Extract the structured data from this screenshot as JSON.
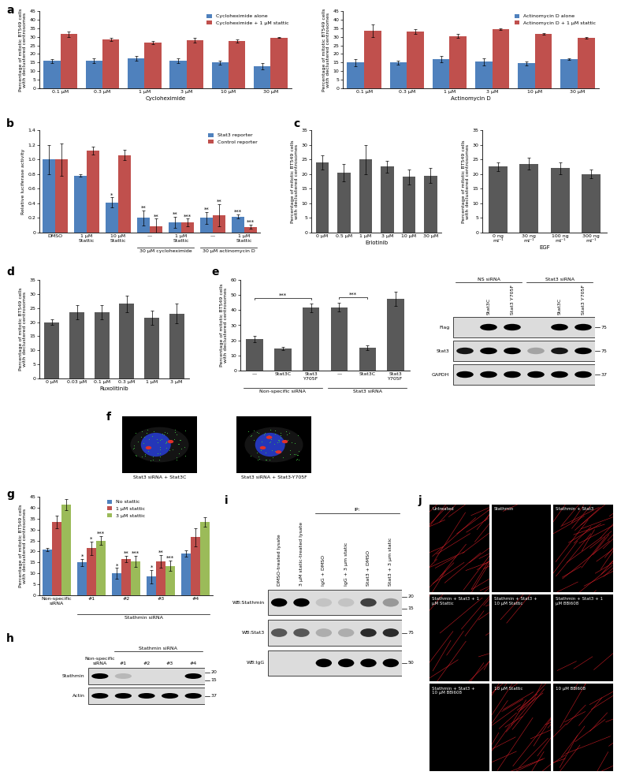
{
  "chart_data": [
    {
      "panel": "a",
      "type": "bar",
      "categories": [
        "0.1 µM",
        "0.3 µM",
        "1 µM",
        "3 µM",
        "10 µM",
        "30 µM"
      ],
      "x_label": "Cycloheximide",
      "y_label": "Percentage of mitotic BT549 cells with declustered centrosomes",
      "ylim": [
        0,
        45
      ],
      "yticks": [
        0,
        5,
        10,
        15,
        20,
        25,
        30,
        35,
        40,
        45
      ],
      "grid": false,
      "legend": "upper right",
      "series": [
        {
          "name": "Cycloheximide alone",
          "color": "#4F81BD",
          "values": [
            16,
            16,
            17.5,
            16,
            15,
            13
          ],
          "errors": [
            1.2,
            1.5,
            1.2,
            1.5,
            1.2,
            1.8
          ]
        },
        {
          "name": "Cycloheximide + 1 µM stattic",
          "color": "#C0504D",
          "values": [
            31.5,
            28.5,
            26.5,
            28,
            27.5,
            29.5
          ],
          "errors": [
            1.5,
            1,
            1,
            1.5,
            1,
            0.3
          ]
        }
      ]
    },
    {
      "panel": "a",
      "type": "bar",
      "categories": [
        "0.1 µM",
        "0.3 µM",
        "1 µM",
        "3 µM",
        "10 µM",
        "30 µM"
      ],
      "x_label": "Actinomycin D",
      "y_label": "Percentage of mitotic BT549 cells with declustered centrosomes",
      "ylim": [
        0,
        45
      ],
      "yticks": [
        0,
        5,
        10,
        15,
        20,
        25,
        30,
        35,
        40,
        45
      ],
      "grid": false,
      "legend": "upper right",
      "series": [
        {
          "name": "Actinomycin D alone",
          "color": "#4F81BD",
          "values": [
            15,
            15,
            17,
            15.5,
            14.5,
            17
          ],
          "errors": [
            2,
            1,
            2,
            2,
            1.2,
            0.3
          ]
        },
        {
          "name": "Actinomycin D + 1 µM stattic",
          "color": "#C0504D",
          "values": [
            33.5,
            33,
            30.5,
            34.5,
            31.5,
            29.5
          ],
          "errors": [
            3.5,
            1.5,
            1,
            0.5,
            0.5,
            0.5
          ]
        }
      ]
    },
    {
      "panel": "b",
      "type": "bar",
      "categories": [
        "DMSO",
        "1 µM Stattic",
        "10 µM Stattic",
        "—",
        "1 µM Stattic",
        "—",
        "1 µM Stattic"
      ],
      "y_label": "Relative luciferase activity",
      "ylim": [
        0,
        1.4
      ],
      "yticks": [
        0,
        0.2,
        0.4,
        0.6,
        0.8,
        1.0,
        1.2,
        1.4
      ],
      "grid": false,
      "legend": "upper right",
      "groups": [
        {
          "label": "30 µM cycloheximide",
          "from": 3,
          "to": 4
        },
        {
          "label": "30 µM actinomycin D",
          "from": 5,
          "to": 6
        }
      ],
      "series": [
        {
          "name": "Stat3 reporter",
          "color": "#4F81BD",
          "values": [
            1.0,
            0.78,
            0.41,
            0.2,
            0.14,
            0.2,
            0.22
          ],
          "errors": [
            0.2,
            0.02,
            0.07,
            0.1,
            0.08,
            0.08,
            0.03
          ],
          "significance": [
            null,
            null,
            "*",
            "**",
            "**",
            "**",
            "***"
          ]
        },
        {
          "name": "Control reporter",
          "color": "#C0504D",
          "values": [
            1.0,
            1.12,
            1.06,
            0.09,
            0.14,
            0.24,
            0.08
          ],
          "errors": [
            0.22,
            0.05,
            0.07,
            0.1,
            0.05,
            0.15,
            0.03
          ],
          "significance": [
            null,
            null,
            null,
            "**",
            "***",
            "**",
            "***"
          ]
        }
      ]
    },
    {
      "panel": "c",
      "type": "bar",
      "categories": [
        "0 µM",
        "0.5 µM",
        "1 µM",
        "3 µM",
        "10 µM",
        "30 µM"
      ],
      "x_label": "Erlotinib",
      "y_label": "Percentage of mitotic BT549 cells with declustered centrosomes",
      "ylim": [
        0,
        35
      ],
      "yticks": [
        0,
        5,
        10,
        15,
        20,
        25,
        30,
        35
      ],
      "grid": false,
      "color": "#595959",
      "values": [
        24,
        20.5,
        25,
        22.5,
        19,
        19.5
      ],
      "errors": [
        2.5,
        3,
        5,
        2,
        2.5,
        2.5
      ]
    },
    {
      "panel": "c",
      "type": "bar",
      "categories": [
        "0 ng ml⁻¹",
        "30 ng ml⁻¹",
        "100 ng ml⁻¹",
        "300 ng ml⁻¹"
      ],
      "x_label": "EGF",
      "y_label": "Percentage of mitotic BT549 cells with declustered centrosomes",
      "ylim": [
        0,
        35
      ],
      "yticks": [
        0,
        5,
        10,
        15,
        20,
        25,
        30,
        35
      ],
      "grid": false,
      "color": "#595959",
      "values": [
        22.5,
        23.5,
        22,
        20
      ],
      "errors": [
        1.5,
        2,
        2,
        1.5
      ]
    },
    {
      "panel": "d",
      "type": "bar",
      "categories": [
        "0 µM",
        "0.03 µM",
        "0.1 µM",
        "0.3 µM",
        "1 µM",
        "3 µM"
      ],
      "x_label": "Ruxolitinib",
      "y_label": "Percentage of mitotic BT549 cells with declustered centrosomes",
      "ylim": [
        0,
        35
      ],
      "yticks": [
        0,
        5,
        10,
        15,
        20,
        25,
        30,
        35
      ],
      "grid": false,
      "color": "#595959",
      "values": [
        20,
        23.5,
        23.5,
        26.5,
        21.5,
        23
      ],
      "errors": [
        1,
        2.5,
        2.5,
        3,
        2.5,
        3.5
      ]
    },
    {
      "panel": "e",
      "type": "bar",
      "categories": [
        "—",
        "Stat3C",
        "Stat3 Y705F",
        "—",
        "Stat3C",
        "Stat3 Y705F"
      ],
      "y_label": "Percentage of mitotic BT549 cells with declustered centrosomes",
      "ylim": [
        0,
        60
      ],
      "yticks": [
        0,
        10,
        20,
        30,
        40,
        50,
        60
      ],
      "grid": false,
      "color": "#595959",
      "values": [
        21,
        14.5,
        41.5,
        42,
        15,
        47.5
      ],
      "errors": [
        2,
        1,
        3,
        3,
        1.5,
        4.5
      ],
      "groups": [
        {
          "label": "Non-specific siRNA",
          "from": 0,
          "to": 2
        },
        {
          "label": "Stat3 siRNA",
          "from": 3,
          "to": 5
        }
      ],
      "brackets": [
        {
          "from": 0,
          "to": 2,
          "text": "***"
        },
        {
          "from": 3,
          "to": 4,
          "text": "***"
        }
      ]
    },
    {
      "panel": "g",
      "type": "bar",
      "categories": [
        "Non-specific siRNA",
        "#1",
        "#2",
        "#3",
        "#4"
      ],
      "y_label": "Percentage of mitotic BT549 cells with declustered centrosomes",
      "ylim": [
        0,
        45
      ],
      "yticks": [
        0,
        5,
        10,
        15,
        20,
        25,
        30,
        35,
        40,
        45
      ],
      "grid": false,
      "legend": "upper center",
      "groups": [
        {
          "label": "Stathmin siRNA",
          "from": 1,
          "to": 4
        }
      ],
      "series": [
        {
          "name": "No stattic",
          "color": "#4F81BD",
          "values": [
            21,
            15,
            10,
            8.5,
            19
          ],
          "errors": [
            0.7,
            1.5,
            2.5,
            3,
            1.5
          ],
          "significance": [
            null,
            "*",
            "*",
            "*",
            null
          ]
        },
        {
          "name": "1 µM stattic",
          "color": "#C0504D",
          "values": [
            33.5,
            21.5,
            16.5,
            15.5,
            26.5
          ],
          "errors": [
            3,
            3,
            1.5,
            3,
            4
          ],
          "significance": [
            null,
            "*",
            "**",
            "**",
            null
          ]
        },
        {
          "name": "3 µM stattic",
          "color": "#9BBB59",
          "values": [
            41.5,
            25,
            15.5,
            13.5,
            33.5
          ],
          "errors": [
            2.5,
            2,
            2.5,
            2.5,
            2
          ],
          "significance": [
            null,
            "***",
            "***",
            "***",
            null
          ]
        }
      ]
    }
  ],
  "blots": [
    {
      "panel": "e",
      "lanes": [
        null,
        "Stat3C",
        "Stat3 Y705F",
        null,
        "Stat3C",
        "Stat3 Y705F"
      ],
      "column_groups": [
        {
          "label": "NS siRNA",
          "from": 0,
          "to": 2
        },
        {
          "label": "Stat3 siRNA",
          "from": 3,
          "to": 5
        }
      ],
      "rows": [
        {
          "label": "Flag",
          "markers": [
            75
          ],
          "bands": [
            0,
            1,
            1,
            0,
            1,
            1
          ]
        },
        {
          "label": "Stat3",
          "markers": [
            75
          ],
          "bands": [
            0.9,
            1,
            1,
            0.25,
            0.9,
            1
          ]
        },
        {
          "label": "GAPDH",
          "markers": [
            37
          ],
          "bands": [
            1,
            1,
            1,
            1,
            1,
            1
          ]
        }
      ]
    },
    {
      "panel": "h",
      "lanes": [
        "Non-specific siRNA",
        "#1",
        "#2",
        "#3",
        "#4"
      ],
      "column_groups": [
        {
          "label": "Stathmin siRNA",
          "from": 1,
          "to": 4
        }
      ],
      "rows": [
        {
          "label": "Stathmin",
          "markers": [
            20,
            15
          ],
          "bands": [
            1,
            0.15,
            0,
            0,
            1
          ]
        },
        {
          "label": "Actin",
          "markers": [
            37
          ],
          "bands": [
            1,
            1,
            1,
            1,
            1
          ]
        }
      ]
    },
    {
      "panel": "i",
      "lanes": [
        "DMSO-treated lysate",
        "3 µM static-treated lysate",
        "IgG + DMSO",
        "IgG + 3 µm static",
        "Stat3 + DMSO",
        "Stat3 + 3 µm static"
      ],
      "column_groups": [
        {
          "label": "IP:",
          "from": 2,
          "to": 5
        }
      ],
      "rows": [
        {
          "label": "WB:Stathmin",
          "markers": [
            20,
            15
          ],
          "bands": [
            1,
            1,
            0.1,
            0.1,
            0.7,
            0.3
          ]
        },
        {
          "label": "WB:Stat3",
          "markers": [
            75
          ],
          "bands": [
            0.6,
            0.6,
            0.2,
            0.2,
            0.8,
            0.8
          ]
        },
        {
          "label": "WB:IgG",
          "markers": [
            50
          ],
          "bands": [
            0,
            0,
            1,
            1,
            1,
            1
          ]
        }
      ]
    }
  ],
  "images": [
    {
      "panel": "f",
      "items": [
        {
          "label": "Stat3 siRNA + Stat3C",
          "centrosome_foci": 2
        },
        {
          "label": "Stat3 siRNA + Stat3-Y705F",
          "centrosome_foci": 4
        }
      ]
    },
    {
      "panel": "j",
      "items": [
        {
          "label": "Untreated",
          "filament_level": 1.0
        },
        {
          "label": "Stathmin",
          "filament_level": 0.05
        },
        {
          "label": "Stathmin + Stat3",
          "filament_level": 1.0
        },
        {
          "label": "Stathmin + Stat3 + 1 µM Stattic",
          "filament_level": 0.45
        },
        {
          "label": "Stathmin + Stat3 + 10 µM Stattic",
          "filament_level": 0.05
        },
        {
          "label": "Stathmin + Stat3 + 1 µM BBI608",
          "filament_level": 0.1
        },
        {
          "label": "Stathmin + Stat3 + 10 µM BBI608",
          "filament_level": 0.02
        },
        {
          "label": "10 µM Stattic",
          "filament_level": 0.9
        },
        {
          "label": "10 µM BBI608",
          "filament_level": 0.6
        }
      ]
    }
  ]
}
